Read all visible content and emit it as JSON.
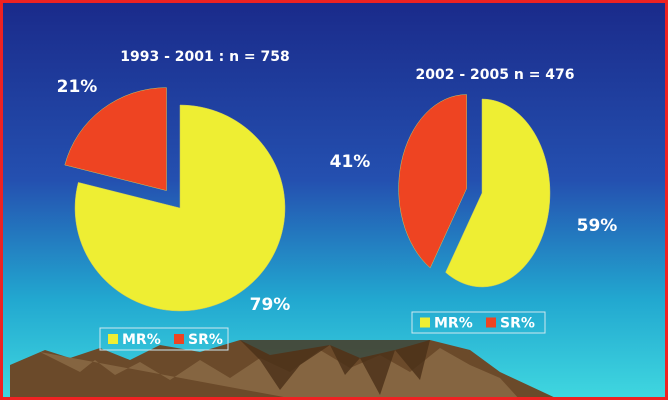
{
  "chart_data": [
    {
      "type": "pie",
      "title": "1993 - 2001 : n = 758",
      "categories": [
        "MR%",
        "SR%"
      ],
      "values": [
        79,
        21
      ],
      "value_labels": [
        "79%",
        "21%"
      ],
      "colors": [
        "#eeee33",
        "#ee4422"
      ]
    },
    {
      "type": "pie",
      "title": "2002 - 2005 n = 476",
      "categories": [
        "MR%",
        "SR%"
      ],
      "values": [
        59,
        41
      ],
      "value_labels": [
        "59%",
        "41%"
      ],
      "colors": [
        "#eeee33",
        "#ee4422"
      ]
    }
  ]
}
